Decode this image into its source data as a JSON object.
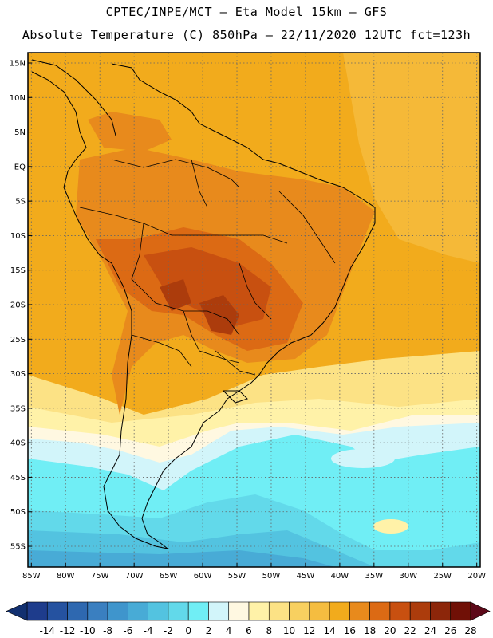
{
  "header": {
    "line1": "CPTEC/INPE/MCT –  Eta Model 15km – GFS",
    "line2": "Absolute Temperature (C) 850hPa – 22/11/2020 12UTC fct=123h"
  },
  "map": {
    "lat_labels": [
      "15N",
      "10N",
      "5N",
      "EQ",
      "5S",
      "10S",
      "15S",
      "20S",
      "25S",
      "30S",
      "35S",
      "40S",
      "45S",
      "50S",
      "55S"
    ],
    "lon_labels": [
      "85W",
      "80W",
      "75W",
      "70W",
      "65W",
      "60W",
      "55W",
      "50W",
      "45W",
      "40W",
      "35W",
      "30W",
      "25W",
      "20W"
    ],
    "lat_range": [
      -58,
      16.5
    ],
    "lon_range": [
      -85.5,
      -19.5
    ],
    "gridlines": "dotted"
  },
  "colorbar": {
    "labels": [
      "-14",
      "-12",
      "-10",
      "-8",
      "-6",
      "-4",
      "-2",
      "0",
      "2",
      "4",
      "6",
      "8",
      "10",
      "12",
      "14",
      "16",
      "18",
      "20",
      "22",
      "24",
      "26",
      "28"
    ],
    "colors": [
      "#1e3c8c",
      "#2552a0",
      "#2e68b0",
      "#3a7fc0",
      "#3f95cc",
      "#48abd6",
      "#53c3e0",
      "#62d9ea",
      "#70eef5",
      "#d2f5fa",
      "#fff8e1",
      "#fff2a8",
      "#fce285",
      "#f8d060",
      "#f5bd40",
      "#f2ab1c",
      "#e88a1c",
      "#dc6a14",
      "#c85010",
      "#ac3c0c",
      "#8c260a",
      "#701006"
    ],
    "end_low": "#123070",
    "end_high": "#5c0818"
  }
}
